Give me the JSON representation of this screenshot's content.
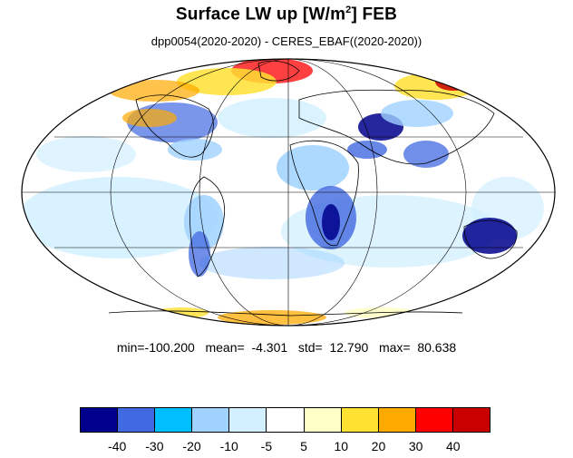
{
  "title": {
    "main": "Surface LW up [W/m",
    "superscript": "2",
    "suffix": "]  FEB"
  },
  "subtitle": "dpp0054(2020-2020) - CERES_EBAF((2020-2020))",
  "stats": {
    "text": "min=-100.200   mean=  -4.301   std=  12.790   max=  80.638",
    "min": -100.2,
    "mean": -4.301,
    "std": 12.79,
    "max": 80.638
  },
  "colorbar": {
    "colors": [
      "#00008c",
      "#4169e1",
      "#00bfff",
      "#a0d2ff",
      "#d2f0ff",
      "#ffffff",
      "#ffffc8",
      "#ffe132",
      "#ffaa00",
      "#ff0000",
      "#c80000"
    ],
    "labels": [
      "-40",
      "-30",
      "-20",
      "-10",
      "-5",
      "5",
      "10",
      "20",
      "30",
      "40"
    ]
  },
  "map": {
    "projection": "Mollweide",
    "graticule": true
  }
}
